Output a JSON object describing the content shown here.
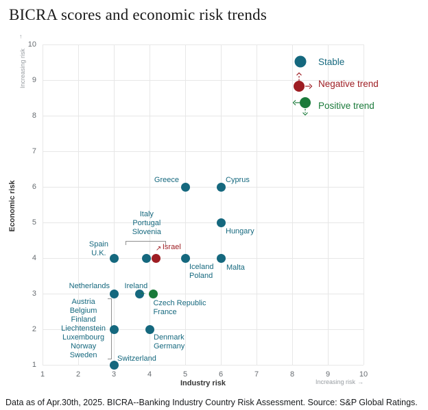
{
  "title": "BICRA scores and economic risk trends",
  "footer": "Data as of Apr.30th, 2025. BICRA--Banking Industry Country Risk Assessment. Source: S&P Global Ratings.",
  "colors": {
    "stable": "#15687e",
    "negative": "#9e1d23",
    "positive": "#1a7a3a",
    "grid": "#e7e7e7",
    "tick": "#666b70",
    "increasing": "#979ca1",
    "bracket": "#8f8f8f"
  },
  "icons": {
    "up_arrow": "↑",
    "right_arrow": "→",
    "left_arrow": "←",
    "up_right_arrow": "↗"
  },
  "legend": {
    "items": [
      {
        "label": "Stable",
        "type": "stable"
      },
      {
        "label": "Negative trend",
        "type": "negative"
      },
      {
        "label": "Positive trend",
        "type": "positive"
      }
    ]
  },
  "chart_data": {
    "type": "scatter",
    "title": "BICRA scores and economic risk trends",
    "xlabel": "Industry risk",
    "ylabel": "Economic risk",
    "x_direction_label": "Increasing risk",
    "y_direction_label": "Increasing risk",
    "xlim": [
      1,
      10
    ],
    "ylim": [
      1,
      10
    ],
    "xticks": [
      1,
      2,
      3,
      4,
      5,
      6,
      7,
      8,
      9,
      10
    ],
    "yticks": [
      1,
      2,
      3,
      4,
      5,
      6,
      7,
      8,
      9,
      10
    ],
    "grid": true,
    "legend_position": "top-right",
    "points": [
      {
        "name": "greece",
        "label": "Greece",
        "x": 5,
        "y": 6,
        "trend": "stable",
        "lx": -9,
        "ly": -16,
        "align": "right"
      },
      {
        "name": "cyprus",
        "label": "Cyprus",
        "x": 6,
        "y": 6,
        "trend": "stable",
        "lx": 7,
        "ly": -16,
        "align": "left"
      },
      {
        "name": "hungary",
        "label": "Hungary",
        "x": 6,
        "y": 5,
        "trend": "stable",
        "lx": 7,
        "ly": 7,
        "align": "left"
      },
      {
        "name": "italy-portugal-slovenia",
        "label": "Italy\nPortugal\nSlovenia",
        "x": 3.92,
        "y": 4,
        "trend": "stable",
        "lx": 0,
        "ly": -70,
        "align": "center"
      },
      {
        "name": "israel",
        "label": "Israel",
        "x": 4.19,
        "y": 4,
        "trend": "negative",
        "lx": 9,
        "ly": -22,
        "align": "left",
        "arrow": "up-right"
      },
      {
        "name": "spain-uk",
        "label": "Spain\nU.K.",
        "x": 3,
        "y": 4,
        "trend": "stable",
        "lx": -8,
        "ly": -26,
        "align": "right",
        "ta": "center"
      },
      {
        "name": "iceland-poland",
        "label": "Iceland\nPoland",
        "x": 5,
        "y": 4,
        "trend": "stable",
        "lx": 6,
        "ly": 7,
        "align": "left"
      },
      {
        "name": "malta",
        "label": "Malta",
        "x": 6,
        "y": 4,
        "trend": "stable",
        "lx": 8,
        "ly": 8,
        "align": "left"
      },
      {
        "name": "netherlands",
        "label": "Netherlands",
        "x": 3,
        "y": 3,
        "trend": "stable",
        "lx": -6,
        "ly": -17,
        "align": "right"
      },
      {
        "name": "czech-republic-france",
        "label": "Czech Republic\nFrance",
        "x": 3.72,
        "y": 3,
        "trend": "stable",
        "lx": 20,
        "ly": 8,
        "align": "left"
      },
      {
        "name": "ireland",
        "label": "Ireland",
        "x": 4.1,
        "y": 3,
        "trend": "positive",
        "lx": -8,
        "ly": -17,
        "align": "right",
        "arrow": "left"
      },
      {
        "name": "austria-group",
        "label": "Austria\nBelgium\nFinland\nLiechtenstein\nLuxembourg\nNorway\nSweden",
        "x": 3,
        "y": 2,
        "trend": "stable",
        "lx": -12,
        "ly": -46,
        "align": "right",
        "ta": "center"
      },
      {
        "name": "denmark-germany",
        "label": "Denmark\nGermany",
        "x": 4,
        "y": 2,
        "trend": "stable",
        "lx": 6,
        "ly": 6,
        "align": "left"
      },
      {
        "name": "switzerland",
        "label": "Switzerland",
        "x": 3,
        "y": 1,
        "trend": "stable",
        "lx": 5,
        "ly": -15,
        "align": "left"
      }
    ],
    "annotations": [
      {
        "type": "h",
        "x1": 3.33,
        "x2": 4.43,
        "y": 4.48
      },
      {
        "type": "v",
        "x": 2.83,
        "y1": 1.2,
        "y2": 2.87
      }
    ]
  }
}
